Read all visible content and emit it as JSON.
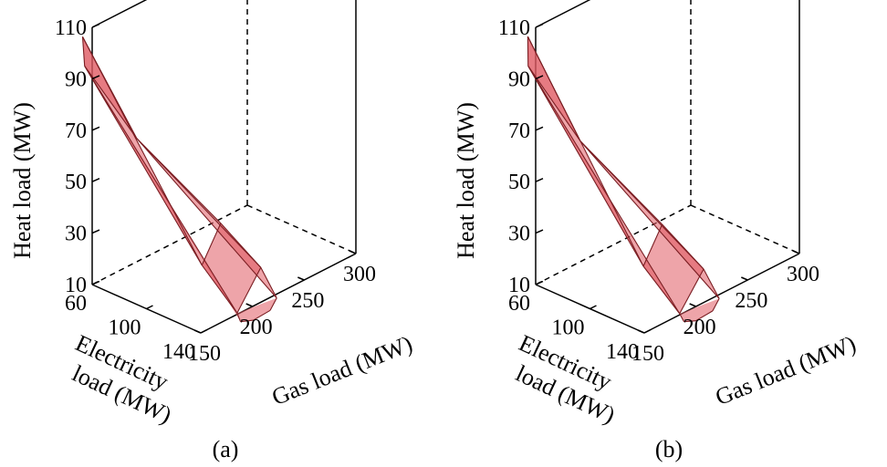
{
  "chart_data": [
    {
      "type": "3d-surface",
      "caption": "(a)",
      "axes": {
        "x": {
          "label_lines": [
            "Electricity",
            "load (MW)"
          ],
          "ticks": [
            "60",
            "100",
            "140"
          ],
          "range": [
            60,
            140
          ]
        },
        "y": {
          "label": "Gas load (MW)",
          "ticks": [
            "150",
            "200",
            "250",
            "300"
          ],
          "range": [
            150,
            300
          ]
        },
        "z": {
          "label": "Heat load (MW)",
          "ticks": [
            "10",
            "30",
            "50",
            "70",
            "90",
            "110"
          ],
          "range": [
            10,
            110
          ]
        }
      },
      "grid": false,
      "colors": {
        "fill": "#e05a63",
        "edge": "#7a1d22"
      },
      "vertices": [
        {
          "id": "a",
          "x": 57.5,
          "y": 144,
          "z": 107
        },
        {
          "id": "b",
          "x": 59,
          "y": 144,
          "z": 96
        },
        {
          "id": "c",
          "x": 70,
          "y": 180,
          "z": 63
        },
        {
          "id": "d",
          "x": 109,
          "y": 210,
          "z": 33
        },
        {
          "id": "e",
          "x": 118,
          "y": 180,
          "z": 25
        },
        {
          "id": "f",
          "x": 137,
          "y": 212,
          "z": 22
        },
        {
          "id": "g",
          "x": 147,
          "y": 176,
          "z": 14
        },
        {
          "id": "h",
          "x": 151,
          "y": 209,
          "z": 14
        },
        {
          "id": "i",
          "x": 151,
          "y": 174,
          "z": 12
        },
        {
          "id": "j",
          "x": 150,
          "y": 204,
          "z": 10
        },
        {
          "id": "k",
          "x": 146,
          "y": 193,
          "z": 7.5
        }
      ],
      "faces": [
        [
          "a",
          "b",
          "e"
        ],
        [
          "a",
          "b",
          "c"
        ],
        [
          "b",
          "e",
          "g"
        ],
        [
          "b",
          "g",
          "i"
        ],
        [
          "c",
          "d",
          "f"
        ],
        [
          "c",
          "f",
          "h"
        ],
        [
          "e",
          "g",
          "f",
          "d"
        ],
        [
          "g",
          "i",
          "j",
          "h"
        ],
        [
          "i",
          "k",
          "j"
        ]
      ],
      "edges": [
        [
          "a",
          "b"
        ],
        [
          "a",
          "e"
        ],
        [
          "a",
          "c"
        ],
        [
          "b",
          "e"
        ],
        [
          "b",
          "c"
        ],
        [
          "b",
          "g"
        ],
        [
          "c",
          "d"
        ],
        [
          "c",
          "f"
        ],
        [
          "c",
          "h"
        ],
        [
          "e",
          "g"
        ],
        [
          "e",
          "d"
        ],
        [
          "d",
          "f"
        ],
        [
          "f",
          "g"
        ],
        [
          "f",
          "h"
        ],
        [
          "g",
          "i"
        ],
        [
          "i",
          "k"
        ],
        [
          "k",
          "j"
        ],
        [
          "j",
          "h"
        ]
      ]
    },
    {
      "type": "3d-surface",
      "caption": "(b)",
      "axes": {
        "x": {
          "label_lines": [
            "Electricity",
            "load (MW)"
          ],
          "ticks": [
            "60",
            "100",
            "140"
          ],
          "range": [
            60,
            140
          ]
        },
        "y": {
          "label": "Gas load (MW)",
          "ticks": [
            "150",
            "200",
            "250",
            "300"
          ],
          "range": [
            150,
            300
          ]
        },
        "z": {
          "label": "Heat load (MW)",
          "ticks": [
            "10",
            "30",
            "50",
            "70",
            "90",
            "110"
          ],
          "range": [
            10,
            110
          ]
        }
      },
      "grid": false,
      "colors": {
        "fill": "#e05a63",
        "edge": "#7a1d22"
      },
      "vertices": [
        {
          "id": "a",
          "x": 58,
          "y": 145,
          "z": 107
        },
        {
          "id": "b",
          "x": 59,
          "y": 144,
          "z": 96
        },
        {
          "id": "c",
          "x": 70,
          "y": 180,
          "z": 62
        },
        {
          "id": "d",
          "x": 109,
          "y": 208,
          "z": 33
        },
        {
          "id": "e",
          "x": 118,
          "y": 178,
          "z": 25
        },
        {
          "id": "f",
          "x": 138,
          "y": 210,
          "z": 22
        },
        {
          "id": "g",
          "x": 147,
          "y": 175,
          "z": 14
        },
        {
          "id": "h",
          "x": 151,
          "y": 208,
          "z": 14
        },
        {
          "id": "i",
          "x": 151,
          "y": 174,
          "z": 12
        },
        {
          "id": "j",
          "x": 150,
          "y": 203,
          "z": 10
        },
        {
          "id": "k",
          "x": 146,
          "y": 192,
          "z": 7.5
        }
      ],
      "faces": [
        [
          "a",
          "b",
          "e"
        ],
        [
          "a",
          "b",
          "c"
        ],
        [
          "b",
          "e",
          "g"
        ],
        [
          "b",
          "g",
          "i"
        ],
        [
          "c",
          "d",
          "f"
        ],
        [
          "c",
          "f",
          "h"
        ],
        [
          "e",
          "g",
          "f",
          "d"
        ],
        [
          "g",
          "i",
          "j",
          "h"
        ],
        [
          "i",
          "k",
          "j"
        ]
      ],
      "edges": [
        [
          "a",
          "b"
        ],
        [
          "a",
          "e"
        ],
        [
          "a",
          "c"
        ],
        [
          "b",
          "e"
        ],
        [
          "b",
          "c"
        ],
        [
          "b",
          "g"
        ],
        [
          "c",
          "d"
        ],
        [
          "c",
          "f"
        ],
        [
          "c",
          "h"
        ],
        [
          "e",
          "g"
        ],
        [
          "e",
          "d"
        ],
        [
          "d",
          "f"
        ],
        [
          "f",
          "g"
        ],
        [
          "f",
          "h"
        ],
        [
          "g",
          "i"
        ],
        [
          "i",
          "k"
        ],
        [
          "k",
          "j"
        ],
        [
          "j",
          "h"
        ]
      ]
    }
  ]
}
